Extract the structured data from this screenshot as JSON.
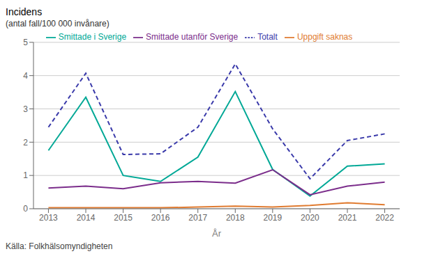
{
  "chart_data": {
    "type": "line",
    "title": "Incidens",
    "subtitle": "(antal fall/100 000 invånare)",
    "xlabel": "År",
    "annotations": [
      "Källa: Folkhälsomyndigheten"
    ],
    "x": [
      2013,
      2014,
      2015,
      2016,
      2017,
      2018,
      2019,
      2020,
      2021,
      2022
    ],
    "series": [
      {
        "name": "Smittade i Sverige",
        "color": "#00a896",
        "line_style": "solid",
        "values": [
          1.75,
          3.35,
          1.0,
          0.82,
          1.55,
          3.52,
          1.18,
          0.38,
          1.28,
          1.35
        ]
      },
      {
        "name": "Smittade utanför Sverige",
        "color": "#7b2d8b",
        "line_style": "solid",
        "values": [
          0.62,
          0.68,
          0.6,
          0.78,
          0.82,
          0.77,
          1.17,
          0.42,
          0.68,
          0.8
        ]
      },
      {
        "name": "Uppgift saknas",
        "color": "#e07b30",
        "line_style": "solid",
        "values": [
          0.03,
          0.03,
          0.03,
          0.03,
          0.05,
          0.08,
          0.05,
          0.1,
          0.18,
          0.12
        ]
      },
      {
        "name": "Totalt",
        "color": "#3a3aaa",
        "line_style": "dashed",
        "values": [
          2.45,
          4.07,
          1.63,
          1.65,
          2.45,
          4.35,
          2.4,
          0.9,
          2.05,
          2.25
        ]
      }
    ],
    "xlim": [
      2012.6,
      2022.4
    ],
    "xticks": [
      2013,
      2014,
      2015,
      2016,
      2017,
      2018,
      2019,
      2020,
      2021,
      2022
    ],
    "ylim": [
      0,
      5
    ],
    "yticks": [
      0,
      1,
      2,
      3,
      4,
      5
    ],
    "grid": true,
    "legend": "top"
  }
}
